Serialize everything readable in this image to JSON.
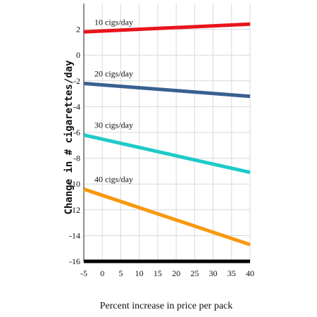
{
  "chart_data": {
    "type": "line",
    "title": "",
    "xlabel": "Percent increase in price per pack",
    "ylabel": "Change in # cigarettes/day",
    "xlim": [
      -5,
      40
    ],
    "ylim": [
      -16,
      4
    ],
    "x_ticks": [
      "-5",
      "0",
      "5",
      "10",
      "15",
      "20",
      "25",
      "30",
      "35",
      "40"
    ],
    "y_ticks": [
      "2",
      "0",
      "-2",
      "-4",
      "-6",
      "-8",
      "-10",
      "-12",
      "-14",
      "-16"
    ],
    "grid": true,
    "legend": "none",
    "series": [
      {
        "name": "10 cigs/day",
        "color": "#e8141c",
        "x": [
          -5,
          40
        ],
        "y": [
          1.8,
          2.4
        ]
      },
      {
        "name": "20 cigs/day",
        "color": "#3a6090",
        "x": [
          -5,
          40
        ],
        "y": [
          -2.2,
          -3.2
        ]
      },
      {
        "name": "30 cigs/day",
        "color": "#1fcac8",
        "x": [
          -5,
          40
        ],
        "y": [
          -6.2,
          -9.1
        ]
      },
      {
        "name": "40 cigs/day",
        "color": "#f7990f",
        "x": [
          -5,
          40
        ],
        "y": [
          -10.4,
          -14.7
        ]
      }
    ]
  }
}
